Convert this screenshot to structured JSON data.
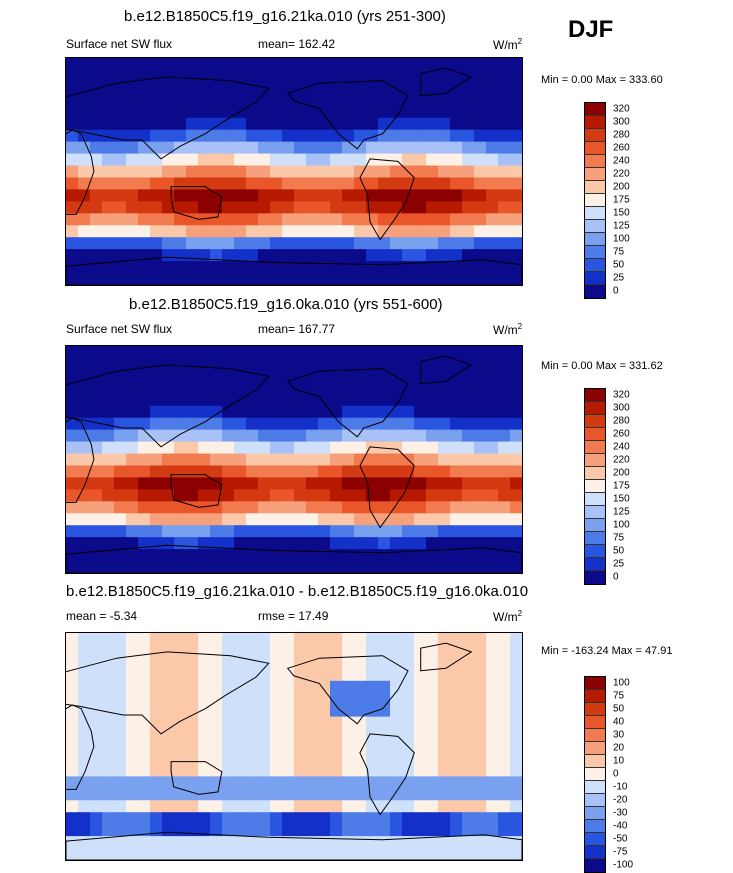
{
  "season": "DJF",
  "colors": {
    "low": "#0a0a8a",
    "mid": "#fdf0e6",
    "high": "#8b0000",
    "coast": "#000000"
  },
  "chart_data": [
    {
      "type": "heatmap",
      "title": "b.e12.B1850C5.f19_g16.21ka.010 (yrs 251-300)",
      "left_label": "Surface net SW flux",
      "mean_text": "mean= 162.42",
      "units": "W/m",
      "units_sup": "2",
      "minmax_text": "Min =   0.00 Max = 333.60",
      "min": 0.0,
      "max": 333.6,
      "mean": 162.42,
      "levels": [
        "320",
        "300",
        "280",
        "260",
        "240",
        "220",
        "200",
        "175",
        "150",
        "125",
        "100",
        "75",
        "50",
        "25",
        "0"
      ],
      "swatch_colors": [
        "#8b0000",
        "#b51a00",
        "#d43a12",
        "#e8562a",
        "#f17a4e",
        "#f7a17c",
        "#fbc8aa",
        "#fdf0e6",
        "#cfe0fb",
        "#a8c2f7",
        "#7aa0f0",
        "#4d7ce8",
        "#2a55e0",
        "#1330c8",
        "#0a0a8a"
      ],
      "ocean_bias": 0
    },
    {
      "type": "heatmap",
      "title": "b.e12.B1850C5.f19_g16.0ka.010 (yrs 551-600)",
      "left_label": "Surface net SW flux",
      "mean_text": "mean= 167.77",
      "units": "W/m",
      "units_sup": "2",
      "minmax_text": "Min =   0.00 Max = 331.62",
      "min": 0.0,
      "max": 331.62,
      "mean": 167.77,
      "levels": [
        "320",
        "300",
        "280",
        "260",
        "240",
        "220",
        "200",
        "175",
        "150",
        "125",
        "100",
        "75",
        "50",
        "25",
        "0"
      ],
      "swatch_colors": [
        "#8b0000",
        "#b51a00",
        "#d43a12",
        "#e8562a",
        "#f17a4e",
        "#f7a17c",
        "#fbc8aa",
        "#fdf0e6",
        "#cfe0fb",
        "#a8c2f7",
        "#7aa0f0",
        "#4d7ce8",
        "#2a55e0",
        "#1330c8",
        "#0a0a8a"
      ],
      "ocean_bias": 0
    },
    {
      "type": "heatmap",
      "title": "b.e12.B1850C5.f19_g16.21ka.010 - b.e12.B1850C5.f19_g16.0ka.010",
      "left_label": "mean =  -5.34",
      "mean_text": "rmse =  17.49",
      "units": "W/m",
      "units_sup": "2",
      "minmax_text": "Min = -163.24 Max =  47.91",
      "min": -163.24,
      "max": 47.91,
      "mean": -5.34,
      "rmse": 17.49,
      "levels": [
        "100",
        "75",
        "50",
        "40",
        "30",
        "20",
        "10",
        "0",
        "-10",
        "-20",
        "-30",
        "-40",
        "-50",
        "-75",
        "-100"
      ],
      "swatch_colors": [
        "#8b0000",
        "#b51a00",
        "#d43a12",
        "#e8562a",
        "#f17a4e",
        "#f7a17c",
        "#fbc8aa",
        "#fdf0e6",
        "#cfe0fb",
        "#a8c2f7",
        "#7aa0f0",
        "#4d7ce8",
        "#2a55e0",
        "#1330c8",
        "#0a0a8a"
      ],
      "ocean_bias": 1
    }
  ]
}
